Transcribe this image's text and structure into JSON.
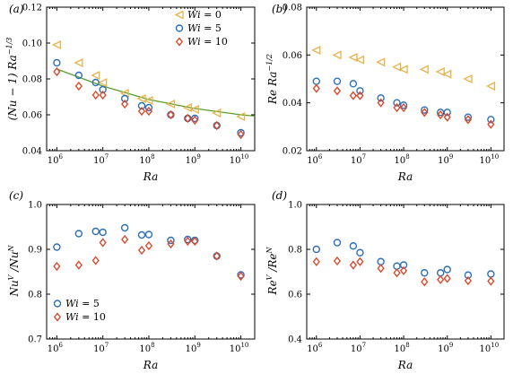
{
  "colors": {
    "wi0": "#e8b24a",
    "wi5": "#2d6fb5",
    "wi10": "#d9482a",
    "fit": "#5a9e2f"
  },
  "chart_data": [
    {
      "type": "scatter",
      "panel_label": "(a)",
      "ylabel": "(Nu − 1) Ra",
      "ylabel_exp": "−1/3",
      "xlabel": "Ra",
      "x_scale": "log",
      "xlim": [
        600000,
        20000000000
      ],
      "ylim": [
        0.04,
        0.12
      ],
      "xticks": [
        {
          "value": 1000000,
          "label": "10",
          "exp": "6"
        },
        {
          "value": 10000000,
          "label": "10",
          "exp": "7"
        },
        {
          "value": 100000000,
          "label": "10",
          "exp": "8"
        },
        {
          "value": 1000000000,
          "label": "10",
          "exp": "9"
        },
        {
          "value": 10000000000,
          "label": "10",
          "exp": "10"
        }
      ],
      "yticks": [
        {
          "value": 0.04,
          "label": "0.04"
        },
        {
          "value": 0.06,
          "label": "0.06"
        },
        {
          "value": 0.08,
          "label": "0.08"
        },
        {
          "value": 0.1,
          "label": "0.10"
        },
        {
          "value": 0.12,
          "label": "0.12"
        }
      ],
      "legend": "top-right",
      "series": [
        {
          "name": "Wi = 0",
          "marker": "triangle-left",
          "color_key": "wi0",
          "x": [
            1000000,
            3000000,
            7000000,
            10000000,
            30000000,
            70000000,
            100000000,
            300000000,
            700000000,
            1000000000,
            3000000000,
            10000000000
          ],
          "y": [
            0.099,
            0.089,
            0.082,
            0.078,
            0.072,
            0.069,
            0.068,
            0.066,
            0.064,
            0.063,
            0.061,
            0.059
          ]
        },
        {
          "name": "Wi = 5",
          "marker": "circle",
          "color_key": "wi5",
          "x": [
            1000000,
            3000000,
            7000000,
            10000000,
            30000000,
            70000000,
            100000000,
            300000000,
            700000000,
            1000000000,
            3000000000,
            10000000000
          ],
          "y": [
            0.089,
            0.082,
            0.078,
            0.074,
            0.069,
            0.065,
            0.064,
            0.06,
            0.058,
            0.058,
            0.054,
            0.05
          ]
        },
        {
          "name": "Wi = 10",
          "marker": "diamond",
          "color_key": "wi10",
          "x": [
            1000000,
            3000000,
            7000000,
            10000000,
            30000000,
            70000000,
            100000000,
            300000000,
            700000000,
            1000000000,
            3000000000,
            10000000000
          ],
          "y": [
            0.084,
            0.076,
            0.071,
            0.071,
            0.066,
            0.062,
            0.062,
            0.06,
            0.058,
            0.057,
            0.054,
            0.049
          ]
        }
      ],
      "fit_line": {
        "color_key": "fit",
        "x": [
          1000000,
          10000000,
          100000000,
          1000000000,
          10000000000,
          20000000000
        ],
        "y": [
          0.0855,
          0.076,
          0.0685,
          0.0635,
          0.06,
          0.0593
        ]
      }
    },
    {
      "type": "scatter",
      "panel_label": "(b)",
      "ylabel": "Re Ra",
      "ylabel_exp": "−1/2",
      "xlabel": "Ra",
      "x_scale": "log",
      "xlim": [
        600000,
        20000000000
      ],
      "ylim": [
        0.02,
        0.08
      ],
      "xticks": [
        {
          "value": 1000000,
          "label": "10",
          "exp": "6"
        },
        {
          "value": 10000000,
          "label": "10",
          "exp": "7"
        },
        {
          "value": 100000000,
          "label": "10",
          "exp": "8"
        },
        {
          "value": 1000000000,
          "label": "10",
          "exp": "9"
        },
        {
          "value": 10000000000,
          "label": "10",
          "exp": "10"
        }
      ],
      "yticks": [
        {
          "value": 0.02,
          "label": "0.02"
        },
        {
          "value": 0.04,
          "label": "0.04"
        },
        {
          "value": 0.06,
          "label": "0.06"
        },
        {
          "value": 0.08,
          "label": "0.08"
        }
      ],
      "series": [
        {
          "name": "Wi = 0",
          "marker": "triangle-left",
          "color_key": "wi0",
          "x": [
            1000000,
            3000000,
            7000000,
            10000000,
            30000000,
            70000000,
            100000000,
            300000000,
            700000000,
            1000000000,
            3000000000,
            10000000000
          ],
          "y": [
            0.062,
            0.06,
            0.059,
            0.058,
            0.057,
            0.055,
            0.054,
            0.054,
            0.053,
            0.052,
            0.05,
            0.047
          ]
        },
        {
          "name": "Wi = 5",
          "marker": "circle",
          "color_key": "wi5",
          "x": [
            1000000,
            3000000,
            7000000,
            10000000,
            30000000,
            70000000,
            100000000,
            300000000,
            700000000,
            1000000000,
            3000000000,
            10000000000
          ],
          "y": [
            0.049,
            0.049,
            0.048,
            0.045,
            0.042,
            0.04,
            0.039,
            0.037,
            0.036,
            0.036,
            0.034,
            0.033
          ]
        },
        {
          "name": "Wi = 10",
          "marker": "diamond",
          "color_key": "wi10",
          "x": [
            1000000,
            3000000,
            7000000,
            10000000,
            30000000,
            70000000,
            100000000,
            300000000,
            700000000,
            1000000000,
            3000000000,
            10000000000
          ],
          "y": [
            0.046,
            0.045,
            0.043,
            0.043,
            0.04,
            0.038,
            0.038,
            0.036,
            0.035,
            0.034,
            0.033,
            0.031
          ]
        }
      ]
    },
    {
      "type": "scatter",
      "panel_label": "(c)",
      "ylabel": "Nu",
      "ylabel_sup1": "V",
      "ylabel_mid": " /Nu",
      "ylabel_sup2": "N",
      "xlabel": "Ra",
      "x_scale": "log",
      "xlim": [
        600000,
        20000000000
      ],
      "ylim": [
        0.7,
        1.0
      ],
      "xticks": [
        {
          "value": 1000000,
          "label": "10",
          "exp": "6"
        },
        {
          "value": 10000000,
          "label": "10",
          "exp": "7"
        },
        {
          "value": 100000000,
          "label": "10",
          "exp": "8"
        },
        {
          "value": 1000000000,
          "label": "10",
          "exp": "9"
        },
        {
          "value": 10000000000,
          "label": "10",
          "exp": "10"
        }
      ],
      "yticks": [
        {
          "value": 0.7,
          "label": "0.7"
        },
        {
          "value": 0.8,
          "label": "0.8"
        },
        {
          "value": 0.9,
          "label": "0.9"
        },
        {
          "value": 1.0,
          "label": "1.0"
        }
      ],
      "legend": "bottom-left",
      "series": [
        {
          "name": "Wi = 5",
          "marker": "circle",
          "color_key": "wi5",
          "x": [
            1000000,
            3000000,
            7000000,
            10000000,
            30000000,
            70000000,
            100000000,
            300000000,
            700000000,
            1000000000,
            3000000000,
            10000000000
          ],
          "y": [
            0.905,
            0.935,
            0.94,
            0.938,
            0.948,
            0.932,
            0.933,
            0.92,
            0.922,
            0.92,
            0.885,
            0.843
          ]
        },
        {
          "name": "Wi = 10",
          "marker": "diamond",
          "color_key": "wi10",
          "x": [
            1000000,
            3000000,
            7000000,
            10000000,
            30000000,
            70000000,
            100000000,
            300000000,
            700000000,
            1000000000,
            3000000000,
            10000000000
          ],
          "y": [
            0.862,
            0.865,
            0.875,
            0.915,
            0.922,
            0.898,
            0.908,
            0.912,
            0.918,
            0.918,
            0.885,
            0.84
          ]
        }
      ]
    },
    {
      "type": "scatter",
      "panel_label": "(d)",
      "ylabel": "Re",
      "ylabel_sup1": "V",
      "ylabel_mid": " /Re",
      "ylabel_sup2": "N",
      "xlabel": "Ra",
      "x_scale": "log",
      "xlim": [
        600000,
        20000000000
      ],
      "ylim": [
        0.4,
        1.0
      ],
      "xticks": [
        {
          "value": 1000000,
          "label": "10",
          "exp": "6"
        },
        {
          "value": 10000000,
          "label": "10",
          "exp": "7"
        },
        {
          "value": 100000000,
          "label": "10",
          "exp": "8"
        },
        {
          "value": 1000000000,
          "label": "10",
          "exp": "9"
        },
        {
          "value": 10000000000,
          "label": "10",
          "exp": "10"
        }
      ],
      "yticks": [
        {
          "value": 0.4,
          "label": "0.4"
        },
        {
          "value": 0.6,
          "label": "0.6"
        },
        {
          "value": 0.8,
          "label": "0.8"
        },
        {
          "value": 1.0,
          "label": "1.0"
        }
      ],
      "series": [
        {
          "name": "Wi = 5",
          "marker": "circle",
          "color_key": "wi5",
          "x": [
            1000000,
            3000000,
            7000000,
            10000000,
            30000000,
            70000000,
            100000000,
            300000000,
            700000000,
            1000000000,
            3000000000,
            10000000000
          ],
          "y": [
            0.8,
            0.83,
            0.815,
            0.785,
            0.745,
            0.725,
            0.73,
            0.695,
            0.695,
            0.71,
            0.685,
            0.69
          ]
        },
        {
          "name": "Wi = 10",
          "marker": "diamond",
          "color_key": "wi10",
          "x": [
            1000000,
            3000000,
            7000000,
            10000000,
            30000000,
            70000000,
            100000000,
            300000000,
            700000000,
            1000000000,
            3000000000,
            10000000000
          ],
          "y": [
            0.745,
            0.748,
            0.73,
            0.745,
            0.715,
            0.695,
            0.705,
            0.655,
            0.665,
            0.67,
            0.66,
            0.658
          ]
        }
      ]
    }
  ]
}
